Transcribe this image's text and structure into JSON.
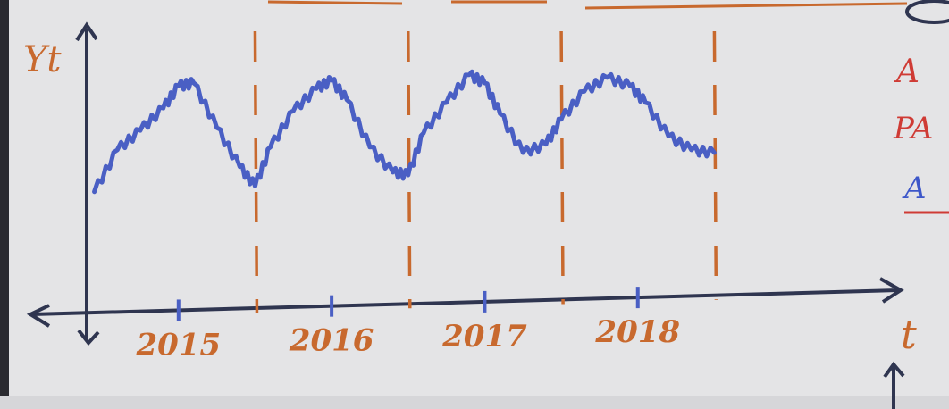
{
  "colors": {
    "board": "#e4e4e6",
    "ink_axis": "#2f3550",
    "ink_series": "#4a5fc4",
    "ink_marker": "#c8692e",
    "ink_red": "#cf3b35",
    "ink_blue_letter": "#3d57c9"
  },
  "chart_data": {
    "type": "line",
    "ylabel": "Yt",
    "xlabel": "t",
    "x_ticks": [
      "2015",
      "2016",
      "2017",
      "2018"
    ],
    "year_boundaries": [
      2015.5,
      2016.5,
      2017.5,
      2018.5
    ],
    "xlim": [
      2014.4,
      2019.7
    ],
    "ylim": [
      0,
      10
    ],
    "grid": false,
    "legend": "none",
    "series": [
      {
        "x": [
          2014.45,
          2014.6,
          2014.75,
          2014.9,
          2015.0,
          2015.1,
          2015.25,
          2015.4,
          2015.5,
          2015.6,
          2015.75,
          2015.9,
          2016.0,
          2016.1,
          2016.25,
          2016.4,
          2016.5,
          2016.6,
          2016.75,
          2016.9,
          2017.0,
          2017.1,
          2017.25,
          2017.4,
          2017.5,
          2017.65,
          2017.8,
          2017.95,
          2018.05,
          2018.2,
          2018.35,
          2018.5
        ],
        "values": [
          4.4,
          5.9,
          6.6,
          7.4,
          8.2,
          8.3,
          6.7,
          5.3,
          4.6,
          6.0,
          7.3,
          8.1,
          8.4,
          7.7,
          6.0,
          5.1,
          5.0,
          6.5,
          7.6,
          8.6,
          8.3,
          7.2,
          5.8,
          6.1,
          7.0,
          8.0,
          8.5,
          8.2,
          7.6,
          6.4,
          5.9,
          5.8
        ]
      }
    ]
  },
  "margin_notes": [
    "A",
    "PA",
    "A"
  ]
}
